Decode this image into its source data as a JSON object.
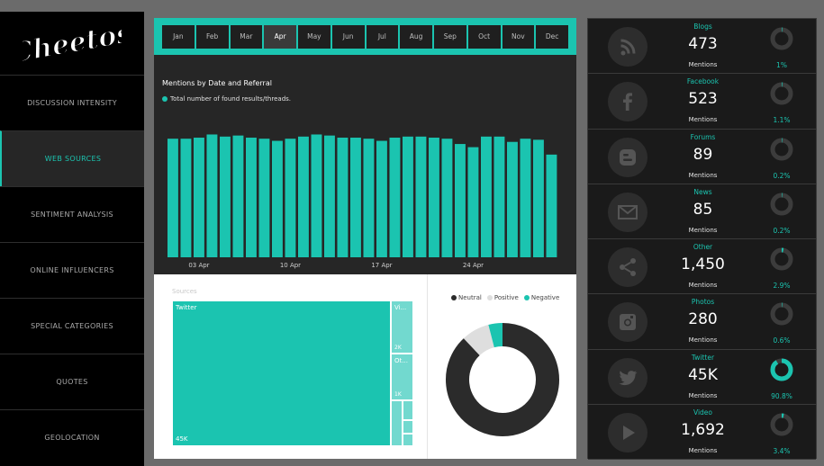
{
  "logo": {
    "text": "Cheetos"
  },
  "nav": [
    {
      "label": "DISCUSSION INTENSITY",
      "active": false
    },
    {
      "label": "WEB SOURCES",
      "active": true
    },
    {
      "label": "SENTIMENT ANALYSIS",
      "active": false
    },
    {
      "label": "ONLINE INFLUENCERS",
      "active": false
    },
    {
      "label": "SPECIAL CATEGORIES",
      "active": false
    },
    {
      "label": "QUOTES",
      "active": false
    },
    {
      "label": "GEOLOCATION",
      "active": false
    }
  ],
  "months": [
    "Jan",
    "Feb",
    "Mar",
    "Apr",
    "May",
    "Jun",
    "Jul",
    "Aug",
    "Sep",
    "Oct",
    "Nov",
    "Dec"
  ],
  "active_month": "Apr",
  "chart_data": {
    "type": "bar",
    "title": "Mentions by Date and Referral",
    "legend": "Total number of found results/threads.",
    "xtick_labels": [
      "03 Apr",
      "10 Apr",
      "17 Apr",
      "24 Apr"
    ],
    "xtick_indices": [
      2,
      9,
      16,
      23
    ],
    "values": [
      112,
      112,
      113,
      116,
      114,
      115,
      113,
      112,
      110,
      112,
      114,
      116,
      115,
      113,
      113,
      112,
      110,
      113,
      114,
      114,
      113,
      112,
      107,
      104,
      114,
      114,
      109,
      112,
      111,
      97
    ],
    "ylim": [
      0,
      130
    ],
    "color": "#1bc4b0"
  },
  "sources": {
    "label": "Sources",
    "twitter": {
      "name": "Twitter",
      "value": "45K"
    },
    "video": {
      "name": "Vi...",
      "value": "2K"
    },
    "other": {
      "name": "Ot...",
      "value": "1K"
    }
  },
  "sentiment": {
    "legend": [
      {
        "label": "Neutral",
        "color": "#2b2b2b"
      },
      {
        "label": "Positive",
        "color": "#dedede"
      },
      {
        "label": "Negative",
        "color": "#1bc4b0"
      }
    ],
    "values": {
      "Neutral": 88,
      "Positive": 8,
      "Negative": 4
    }
  },
  "referrals": [
    {
      "category": "Blogs",
      "value": "473",
      "sub": "Mentions",
      "pct": "1%",
      "fraction": 0.01,
      "icon": "rss-icon"
    },
    {
      "category": "Facebook",
      "value": "523",
      "sub": "Mentions",
      "pct": "1.1%",
      "fraction": 0.011,
      "icon": "facebook-icon"
    },
    {
      "category": "Forums",
      "value": "89",
      "sub": "Mentions",
      "pct": "0.2%",
      "fraction": 0.002,
      "icon": "blogger-icon"
    },
    {
      "category": "News",
      "value": "85",
      "sub": "Mentions",
      "pct": "0.2%",
      "fraction": 0.002,
      "icon": "envelope-icon"
    },
    {
      "category": "Other",
      "value": "1,450",
      "sub": "Mentions",
      "pct": "2.9%",
      "fraction": 0.029,
      "icon": "share-icon"
    },
    {
      "category": "Photos",
      "value": "280",
      "sub": "Mentions",
      "pct": "0.6%",
      "fraction": 0.006,
      "icon": "instagram-icon"
    },
    {
      "category": "Twitter",
      "value": "45K",
      "sub": "Mentions",
      "pct": "90.8%",
      "fraction": 0.908,
      "icon": "twitter-icon"
    },
    {
      "category": "Video",
      "value": "1,692",
      "sub": "Mentions",
      "pct": "3.4%",
      "fraction": 0.034,
      "icon": "play-icon"
    }
  ]
}
